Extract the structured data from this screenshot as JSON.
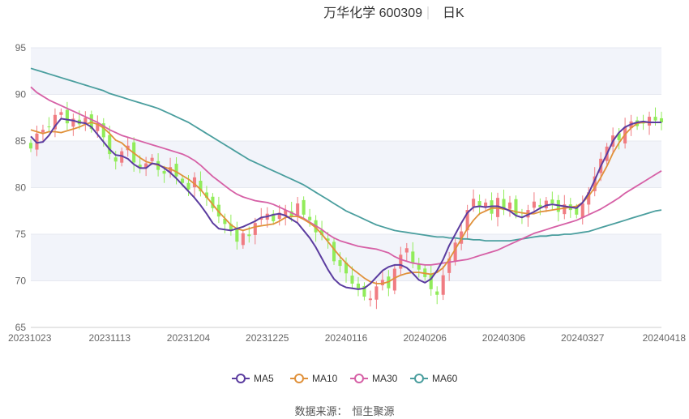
{
  "header": {
    "stock_name": "万华化学 600309",
    "period": "日K"
  },
  "footer": {
    "source_label": "数据来源：",
    "source_name": "恒生聚源"
  },
  "colors": {
    "up": "#f07c82",
    "down": "#91ec5a",
    "ma5": "#5b3c9f",
    "ma10": "#e0913a",
    "ma30": "#d660a6",
    "ma60": "#4a9e9e",
    "band": "#f2f4fa",
    "grid": "#e6e9f0"
  },
  "chart_data": {
    "type": "candlestick",
    "ylim": [
      65,
      95
    ],
    "yticks": [
      65,
      70,
      75,
      80,
      85,
      90,
      95
    ],
    "x_tick_labels": [
      "20231023",
      "20231113",
      "20231204",
      "20231225",
      "20240116",
      "20240206",
      "20240306",
      "20240327",
      "20240418"
    ],
    "legend": [
      {
        "key": "ma5",
        "label": "MA5"
      },
      {
        "key": "ma10",
        "label": "MA10"
      },
      {
        "key": "ma30",
        "label": "MA30"
      },
      {
        "key": "ma60",
        "label": "MA60"
      }
    ],
    "close": [
      84.2,
      85.8,
      86.2,
      86.5,
      87.8,
      88.1,
      86.9,
      87.4,
      86.8,
      87.5,
      86.3,
      86.9,
      85.4,
      83.6,
      82.8,
      83.9,
      84.5,
      82.7,
      82.1,
      82.6,
      83.2,
      81.9,
      81.5,
      82.2,
      81.2,
      80.5,
      79.8,
      81.1,
      79.6,
      78.9,
      77.8,
      76.9,
      76.1,
      75.4,
      74.2,
      75.1,
      74.8,
      76.2,
      76.8,
      77.2,
      76.4,
      77.3,
      77.6,
      76.9,
      78.3,
      77.1,
      76.5,
      75.2,
      74.9,
      74.3,
      72.1,
      71.6,
      70.8,
      69.7,
      69.2,
      68.3,
      68.1,
      69.4,
      70.1,
      69.2,
      71.3,
      72.8,
      73.5,
      71.9,
      71.2,
      70.4,
      69.1,
      68.5,
      70.6,
      72.4,
      74.1,
      75.3,
      77.6,
      78.8,
      77.9,
      78.4,
      77.2,
      78.9,
      77.6,
      78.4,
      77.1,
      76.8,
      77.6,
      78.5,
      77.9,
      78.6,
      78.3,
      77.4,
      78.2,
      77.6,
      77.1,
      78.3,
      79.5,
      81.2,
      83.1,
      84.4,
      85.6,
      85.1,
      86.5,
      87.1,
      86.6,
      86.9,
      87.6,
      87.2,
      87.0
    ],
    "ma5": [
      85.5,
      84.8,
      84.9,
      85.6,
      86.6,
      87.4,
      87.3,
      87.2,
      87.0,
      86.9,
      86.5,
      85.7,
      84.9,
      84.1,
      83.5,
      83.4,
      83.1,
      82.5,
      82.1,
      82.1,
      82.6,
      82.5,
      82.1,
      81.6,
      81.0,
      80.3,
      79.6,
      78.9,
      78.1,
      77.2,
      76.2,
      75.6,
      75.5,
      75.4,
      75.6,
      75.8,
      76.1,
      76.4,
      76.8,
      76.9,
      77.1,
      77.2,
      77.0,
      76.6,
      76.2,
      75.4,
      74.6,
      73.6,
      72.4,
      71.2,
      70.2,
      69.6,
      69.3,
      69.2,
      69.1,
      69.2,
      69.7,
      70.4,
      71.1,
      71.5,
      71.7,
      71.7,
      71.4,
      70.8,
      70.1,
      69.8,
      70.2,
      71.1,
      72.3,
      73.8,
      75.0,
      76.2,
      77.3,
      77.9,
      78.0,
      77.9,
      78.0,
      78.0,
      77.8,
      77.5,
      77.0,
      76.8,
      77.1,
      77.4,
      77.8,
      78.1,
      78.2,
      78.1,
      78.0,
      77.9,
      77.8,
      78.4,
      79.4,
      80.8,
      82.3,
      83.6,
      85.0,
      85.9,
      86.5,
      86.8,
      87.0,
      87.1,
      87.0,
      87.0,
      87.0
    ],
    "ma10": [
      86.2,
      86.0,
      85.8,
      86.0,
      86.0,
      85.9,
      86.1,
      86.3,
      86.5,
      86.8,
      87.0,
      86.8,
      86.4,
      85.8,
      85.1,
      84.8,
      84.2,
      83.7,
      83.2,
      82.8,
      82.6,
      82.4,
      82.2,
      82.0,
      81.7,
      81.3,
      80.9,
      80.4,
      79.8,
      79.0,
      78.2,
      77.4,
      76.7,
      76.0,
      75.6,
      75.4,
      75.6,
      75.8,
      75.9,
      76.0,
      76.1,
      76.4,
      76.8,
      76.9,
      76.9,
      76.6,
      76.2,
      75.7,
      75.0,
      74.2,
      73.4,
      72.6,
      71.9,
      71.3,
      70.8,
      70.3,
      69.9,
      69.7,
      69.7,
      69.9,
      70.3,
      70.6,
      70.8,
      70.9,
      70.9,
      70.8,
      70.7,
      70.9,
      71.4,
      72.3,
      73.4,
      74.5,
      75.6,
      76.5,
      77.2,
      77.5,
      77.8,
      77.8,
      77.7,
      77.6,
      77.4,
      77.3,
      77.2,
      77.2,
      77.4,
      77.5,
      77.6,
      77.7,
      77.8,
      77.9,
      78.0,
      78.4,
      79.1,
      80.0,
      81.1,
      82.3,
      83.7,
      84.8,
      85.7,
      86.4,
      86.9,
      87.0,
      87.0,
      87.0,
      87.0
    ],
    "ma30": [
      90.8,
      90.2,
      89.8,
      89.4,
      89.1,
      88.8,
      88.5,
      88.2,
      87.9,
      87.6,
      87.3,
      87.0,
      86.6,
      86.2,
      85.9,
      85.6,
      85.4,
      85.2,
      85.0,
      84.8,
      84.6,
      84.4,
      84.2,
      84.0,
      83.8,
      83.6,
      83.3,
      82.9,
      82.4,
      81.8,
      81.2,
      80.7,
      80.2,
      79.7,
      79.3,
      79.0,
      78.8,
      78.6,
      78.5,
      78.4,
      78.2,
      77.9,
      77.6,
      77.3,
      77.0,
      76.7,
      76.3,
      75.9,
      75.5,
      75.0,
      74.6,
      74.3,
      74.1,
      73.9,
      73.7,
      73.6,
      73.5,
      73.4,
      73.2,
      73.0,
      72.6,
      72.3,
      72.1,
      71.9,
      71.8,
      71.7,
      71.7,
      71.8,
      71.9,
      72.0,
      72.1,
      72.2,
      72.3,
      72.5,
      72.7,
      72.9,
      73.1,
      73.3,
      73.6,
      73.9,
      74.2,
      74.5,
      74.8,
      75.1,
      75.3,
      75.5,
      75.7,
      75.9,
      76.1,
      76.3,
      76.5,
      76.8,
      77.1,
      77.4,
      77.7,
      78.1,
      78.5,
      78.9,
      79.4,
      79.8,
      80.2,
      80.6,
      81.0,
      81.4,
      81.8
    ],
    "ma60": [
      92.8,
      92.6,
      92.4,
      92.2,
      92.0,
      91.8,
      91.6,
      91.4,
      91.2,
      91.0,
      90.8,
      90.6,
      90.4,
      90.1,
      89.9,
      89.7,
      89.5,
      89.3,
      89.1,
      88.9,
      88.7,
      88.5,
      88.2,
      87.9,
      87.6,
      87.3,
      87.0,
      86.6,
      86.2,
      85.8,
      85.4,
      85.0,
      84.6,
      84.2,
      83.8,
      83.4,
      83.0,
      82.7,
      82.4,
      82.1,
      81.8,
      81.5,
      81.2,
      80.9,
      80.6,
      80.3,
      79.9,
      79.5,
      79.1,
      78.7,
      78.3,
      77.9,
      77.5,
      77.2,
      76.9,
      76.6,
      76.3,
      76.0,
      75.8,
      75.6,
      75.4,
      75.3,
      75.2,
      75.1,
      75.0,
      74.9,
      74.8,
      74.7,
      74.7,
      74.6,
      74.6,
      74.5,
      74.5,
      74.4,
      74.4,
      74.3,
      74.3,
      74.3,
      74.3,
      74.3,
      74.4,
      74.5,
      74.6,
      74.7,
      74.8,
      74.8,
      74.9,
      74.9,
      75.0,
      75.0,
      75.1,
      75.2,
      75.3,
      75.5,
      75.7,
      75.9,
      76.1,
      76.3,
      76.5,
      76.7,
      76.9,
      77.1,
      77.3,
      77.5,
      77.6
    ]
  }
}
